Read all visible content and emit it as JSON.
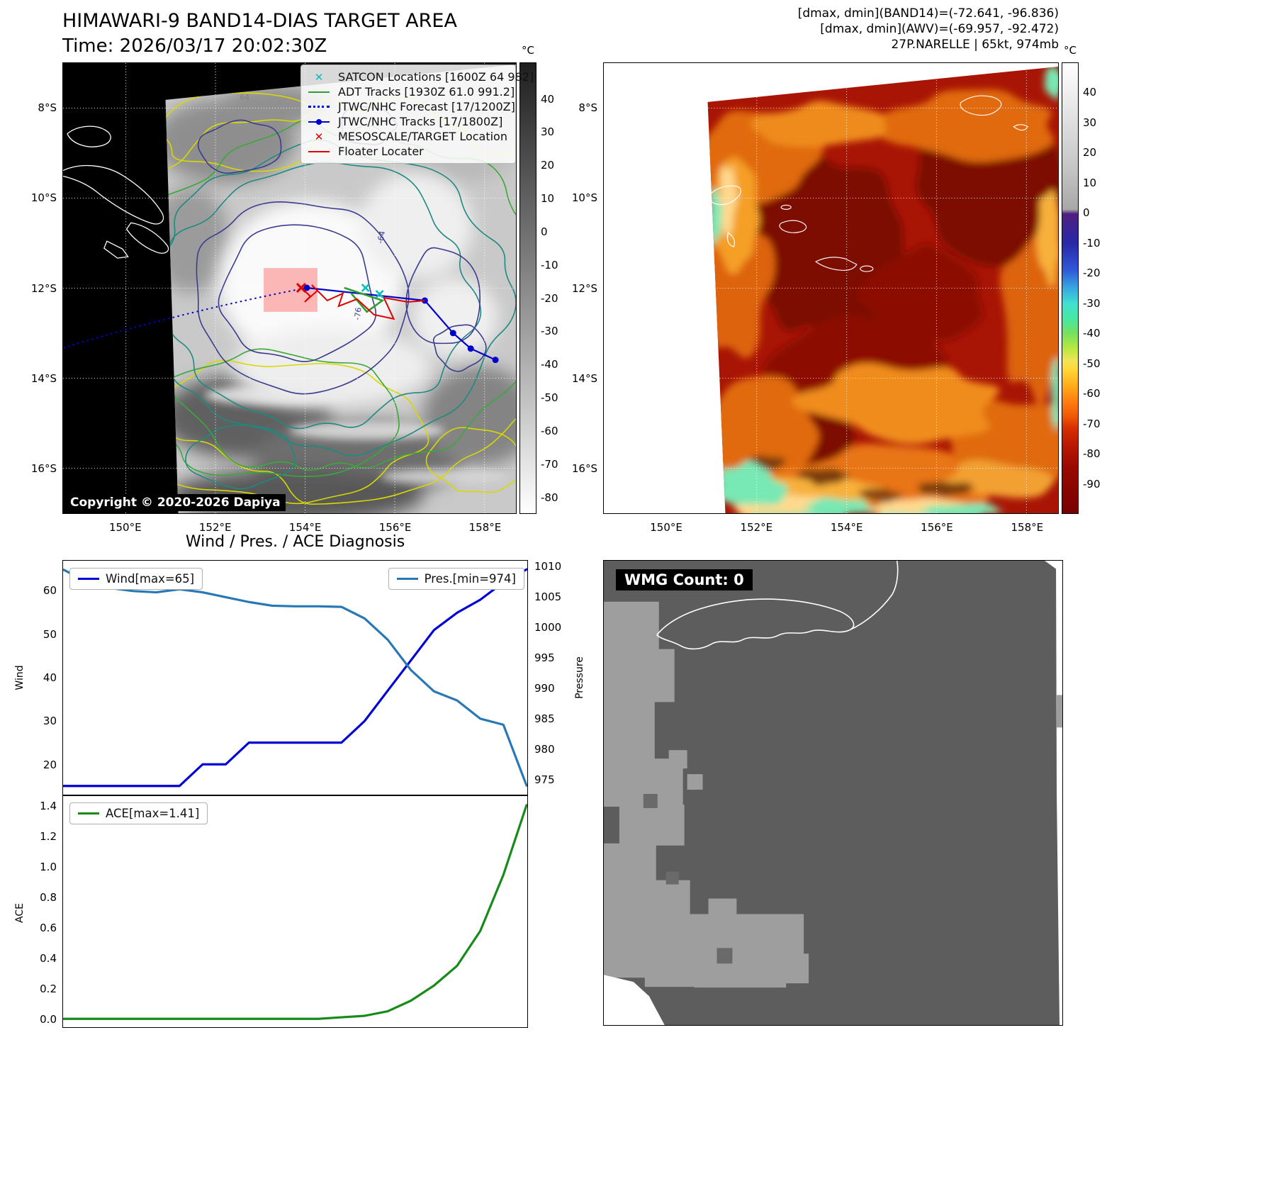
{
  "band14": {
    "title": "HIMAWARI-9 BAND14-DIAS TARGET AREA",
    "subtitle": "Time: 2026/03/17 20:02:30Z",
    "copyright": "Copyright © 2020-2026 Dapiya",
    "legend": [
      {
        "label": "SATCON Locations [1600Z 64 982]",
        "marker": "x",
        "color": "#00bfbf"
      },
      {
        "label": "ADT Tracks [1930Z 61.0 991.2]",
        "marker": "line",
        "color": "#2e9e2e"
      },
      {
        "label": "JTWC/NHC Forecast [17/1200Z]",
        "marker": "dotted",
        "color": "#0000cc"
      },
      {
        "label": "JTWC/NHC Tracks [17/1800Z]",
        "marker": "line-dot",
        "color": "#0000cc"
      },
      {
        "label": "MESOSCALE/TARGET Location",
        "marker": "x",
        "color": "#e00000"
      },
      {
        "label": "Floater Locater",
        "marker": "line",
        "color": "#e00000"
      }
    ],
    "lat_ticks": [
      "8°S",
      "10°S",
      "12°S",
      "14°S",
      "16°S"
    ],
    "lon_ticks": [
      "150°E",
      "152°E",
      "154°E",
      "156°E",
      "158°E"
    ],
    "colorbar_unit": "°C",
    "colorbar_ticks": [
      40,
      30,
      20,
      10,
      0,
      -10,
      -20,
      -30,
      -40,
      -50,
      -60,
      -70,
      -80
    ],
    "contour_labels": [
      {
        "text": "64"
      },
      {
        "text": "-64"
      },
      {
        "text": "-76"
      }
    ]
  },
  "awv": {
    "header": [
      "[dmax, dmin](BAND14)=(-72.641, -96.836)",
      "[dmax, dmin](AWV)=(-69.957, -92.472)",
      "27P.NARELLE | 65kt, 974mb"
    ],
    "lat_ticks": [
      "8°S",
      "10°S",
      "12°S",
      "14°S",
      "16°S"
    ],
    "lon_ticks": [
      "150°E",
      "152°E",
      "154°E",
      "156°E",
      "158°E"
    ],
    "colorbar_unit": "°C",
    "colorbar_ticks": [
      40,
      30,
      20,
      10,
      0,
      -10,
      -20,
      -30,
      -40,
      -50,
      -60,
      -70,
      -80,
      -90
    ]
  },
  "diagnosis": {
    "title": "Wind / Pres. / ACE Diagnosis"
  },
  "wmg": {
    "label": "WMG Count: 0"
  },
  "chart_data": [
    {
      "type": "line",
      "title": "Wind / Pres. / ACE Diagnosis",
      "x_axis": {
        "visible": false,
        "points": 21
      },
      "series": [
        {
          "name": "Wind[max=65]",
          "axis": "left",
          "color": "#0000d6",
          "values": [
            15,
            15,
            15,
            15,
            15,
            15,
            20,
            20,
            25,
            25,
            25,
            25,
            25,
            30,
            37,
            44,
            51,
            55,
            58,
            62,
            65
          ]
        },
        {
          "name": "Pres.[min=974]",
          "axis": "right",
          "color": "#2878b5",
          "values": [
            1009.5,
            1007.5,
            1006.5,
            1006,
            1005.8,
            1006.3,
            1005.8,
            1005,
            1004.2,
            1003.6,
            1003.5,
            1003.5,
            1003.4,
            1001.5,
            998,
            993,
            989.5,
            988,
            985,
            984,
            974
          ]
        }
      ],
      "left_axis": {
        "label": "Wind",
        "ticks": [
          "20",
          "30",
          "40",
          "50",
          "60"
        ],
        "range": [
          13,
          67
        ]
      },
      "right_axis": {
        "label": "Pressure",
        "ticks": [
          "975",
          "980",
          "985",
          "990",
          "995",
          "1000",
          "1005",
          "1010"
        ],
        "range": [
          972.5,
          1011
        ]
      },
      "grid": false
    },
    {
      "type": "line",
      "series": [
        {
          "name": "ACE[max=1.41]",
          "axis": "left",
          "color": "#188a18",
          "values": [
            0,
            0,
            0,
            0,
            0,
            0,
            0,
            0,
            0,
            0,
            0,
            0,
            0.01,
            0.02,
            0.05,
            0.12,
            0.22,
            0.35,
            0.58,
            0.95,
            1.41
          ]
        }
      ],
      "left_axis": {
        "label": "ACE",
        "ticks": [
          "0.0",
          "0.2",
          "0.4",
          "0.6",
          "0.8",
          "1.0",
          "1.2",
          "1.4"
        ],
        "range": [
          -0.055,
          1.47
        ]
      },
      "grid": false
    }
  ]
}
